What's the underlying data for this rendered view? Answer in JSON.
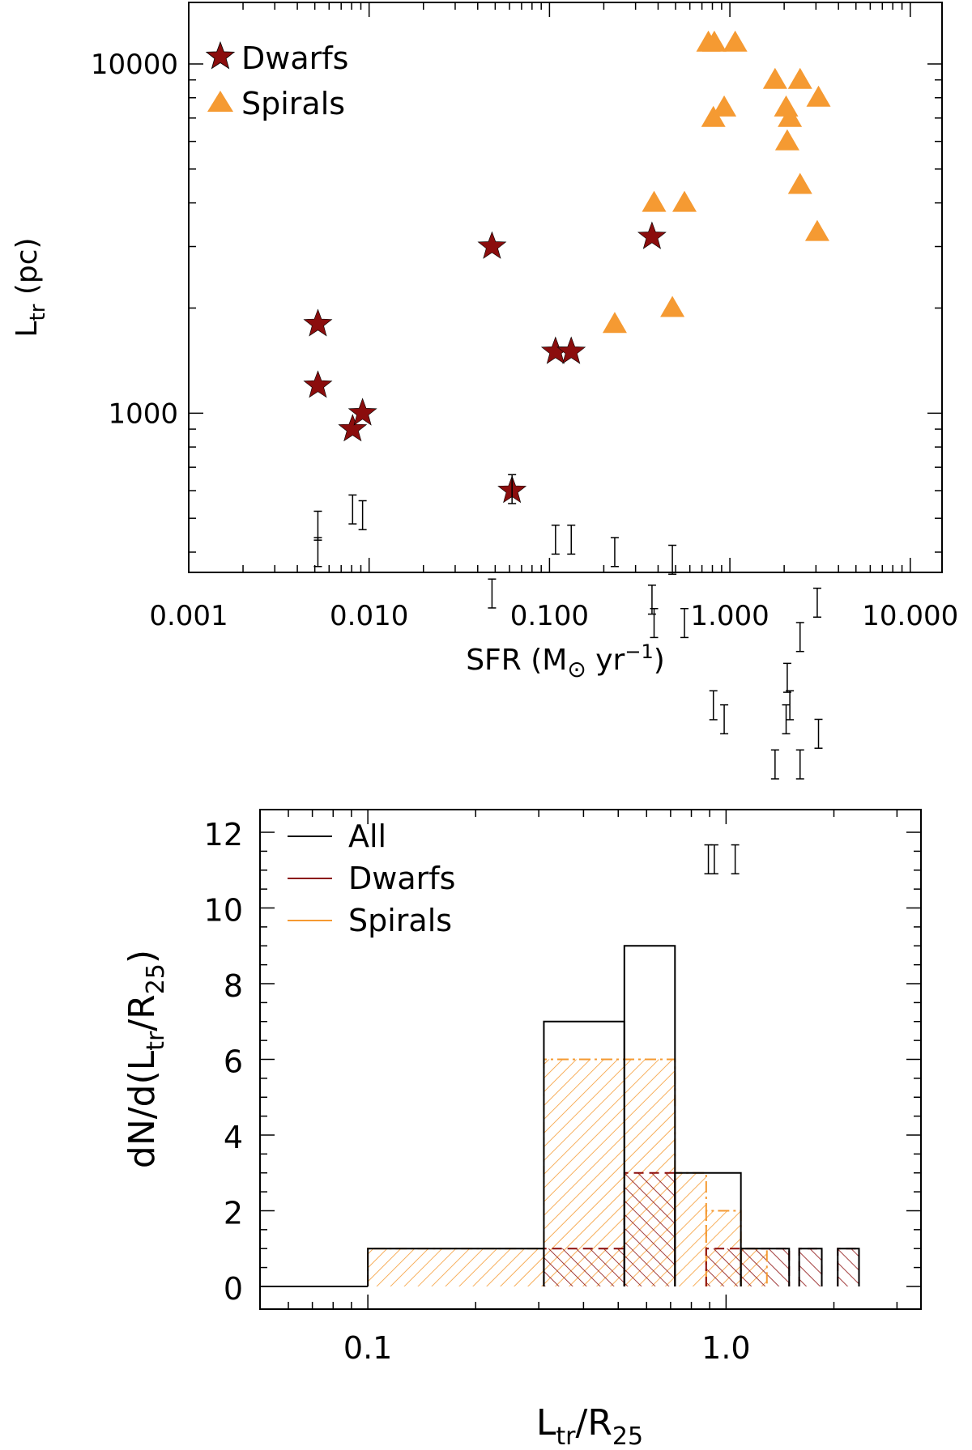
{
  "chart_data": [
    {
      "type": "scatter",
      "xlabel": "SFR (M⊙ yr⁻¹)",
      "xlabel_parts": {
        "main": "SFR (M",
        "sun": "⊙",
        "yr": " yr",
        "exp": "−1",
        "close": ")"
      },
      "ylabel": "Ltr (pc)",
      "ylabel_parts": {
        "main": "L",
        "sub": "tr",
        "rest": " (pc)"
      },
      "x_scale": "log",
      "y_scale": "log",
      "xlim": [
        0.001,
        15
      ],
      "ylim": [
        350,
        15000
      ],
      "x_ticks": [
        0.001,
        0.01,
        0.1,
        1,
        10
      ],
      "x_tick_labels": [
        "0.001",
        "0.010",
        "0.100",
        "1.000",
        "10.000"
      ],
      "y_ticks": [
        1000,
        10000
      ],
      "y_tick_labels": [
        "1000",
        "10000"
      ],
      "legend_position": "top-left",
      "colors": {
        "dwarfs": "#8b0d0d",
        "spirals": "#f59a32"
      },
      "series": [
        {
          "name": "Dwarfs",
          "marker": "star",
          "points": [
            {
              "x": 0.0052,
              "y": 1800
            },
            {
              "x": 0.0052,
              "y": 1200
            },
            {
              "x": 0.0081,
              "y": 900
            },
            {
              "x": 0.0092,
              "y": 1000
            },
            {
              "x": 0.048,
              "y": 3000
            },
            {
              "x": 0.062,
              "y": 600
            },
            {
              "x": 0.108,
              "y": 1500
            },
            {
              "x": 0.132,
              "y": 1500
            },
            {
              "x": 0.37,
              "y": 3200
            }
          ]
        },
        {
          "name": "Spirals",
          "marker": "triangle",
          "points": [
            {
              "x": 0.23,
              "y": 1800
            },
            {
              "x": 0.38,
              "y": 4000
            },
            {
              "x": 0.48,
              "y": 2000
            },
            {
              "x": 0.56,
              "y": 4000
            },
            {
              "x": 0.76,
              "y": 11500
            },
            {
              "x": 0.82,
              "y": 11500
            },
            {
              "x": 1.07,
              "y": 11500
            },
            {
              "x": 0.81,
              "y": 7000
            },
            {
              "x": 0.93,
              "y": 7500
            },
            {
              "x": 1.78,
              "y": 9000
            },
            {
              "x": 2.05,
              "y": 7500
            },
            {
              "x": 2.08,
              "y": 6000
            },
            {
              "x": 2.15,
              "y": 7000
            },
            {
              "x": 2.45,
              "y": 9000
            },
            {
              "x": 2.45,
              "y": 4500
            },
            {
              "x": 3.1,
              "y": 8000
            },
            {
              "x": 3.05,
              "y": 3300
            }
          ]
        }
      ]
    },
    {
      "type": "bar",
      "subtype": "step-histogram",
      "xlabel": "Ltr/R25",
      "xlabel_parts": {
        "main": "L",
        "sub": "tr",
        "mid": "/R",
        "sub2": "25"
      },
      "ylabel": "dN/d(Ltr/R25)",
      "ylabel_parts": {
        "main": "dN/d(L",
        "sub": "tr",
        "mid": "/R",
        "sub2": "25",
        "close": ")"
      },
      "x_scale": "log",
      "xlim": [
        0.05,
        3.5
      ],
      "ylim": [
        -0.6,
        12.6
      ],
      "x_ticks": [
        0.1,
        1.0
      ],
      "x_tick_labels": [
        "0.1",
        "1.0"
      ],
      "y_ticks": [
        0,
        2,
        4,
        6,
        8,
        10,
        12
      ],
      "y_tick_labels": [
        "0",
        "2",
        "4",
        "6",
        "8",
        "10",
        "12"
      ],
      "legend_position": "top-left",
      "colors": {
        "all": "#000000",
        "dwarfs": "#8b0d0d",
        "spirals": "#f59a32"
      },
      "series": [
        {
          "name": "All",
          "bins": [
            {
              "lo": 0.05,
              "hi": 0.1,
              "count": 0
            },
            {
              "lo": 0.1,
              "hi": 0.31,
              "count": 1
            },
            {
              "lo": 0.31,
              "hi": 0.52,
              "count": 7
            },
            {
              "lo": 0.52,
              "hi": 0.72,
              "count": 9
            },
            {
              "lo": 0.72,
              "hi": 1.1,
              "count": 3
            },
            {
              "lo": 1.1,
              "hi": 1.5,
              "count": 1
            },
            {
              "lo": 1.6,
              "hi": 1.85,
              "count": 1
            },
            {
              "lo": 2.05,
              "hi": 2.35,
              "count": 1
            }
          ]
        },
        {
          "name": "Dwarfs",
          "bins": [
            {
              "lo": 0.31,
              "hi": 0.52,
              "count": 1
            },
            {
              "lo": 0.52,
              "hi": 0.72,
              "count": 3
            },
            {
              "lo": 0.88,
              "hi": 1.5,
              "count": 1
            },
            {
              "lo": 1.6,
              "hi": 1.85,
              "count": 1
            },
            {
              "lo": 2.05,
              "hi": 2.35,
              "count": 1
            }
          ]
        },
        {
          "name": "Spirals",
          "bins": [
            {
              "lo": 0.05,
              "hi": 0.1,
              "count": 0
            },
            {
              "lo": 0.1,
              "hi": 0.31,
              "count": 1
            },
            {
              "lo": 0.31,
              "hi": 0.72,
              "count": 6
            },
            {
              "lo": 0.72,
              "hi": 0.88,
              "count": 3
            },
            {
              "lo": 0.88,
              "hi": 1.1,
              "count": 2
            },
            {
              "lo": 1.1,
              "hi": 1.3,
              "count": 1
            }
          ]
        }
      ]
    }
  ]
}
